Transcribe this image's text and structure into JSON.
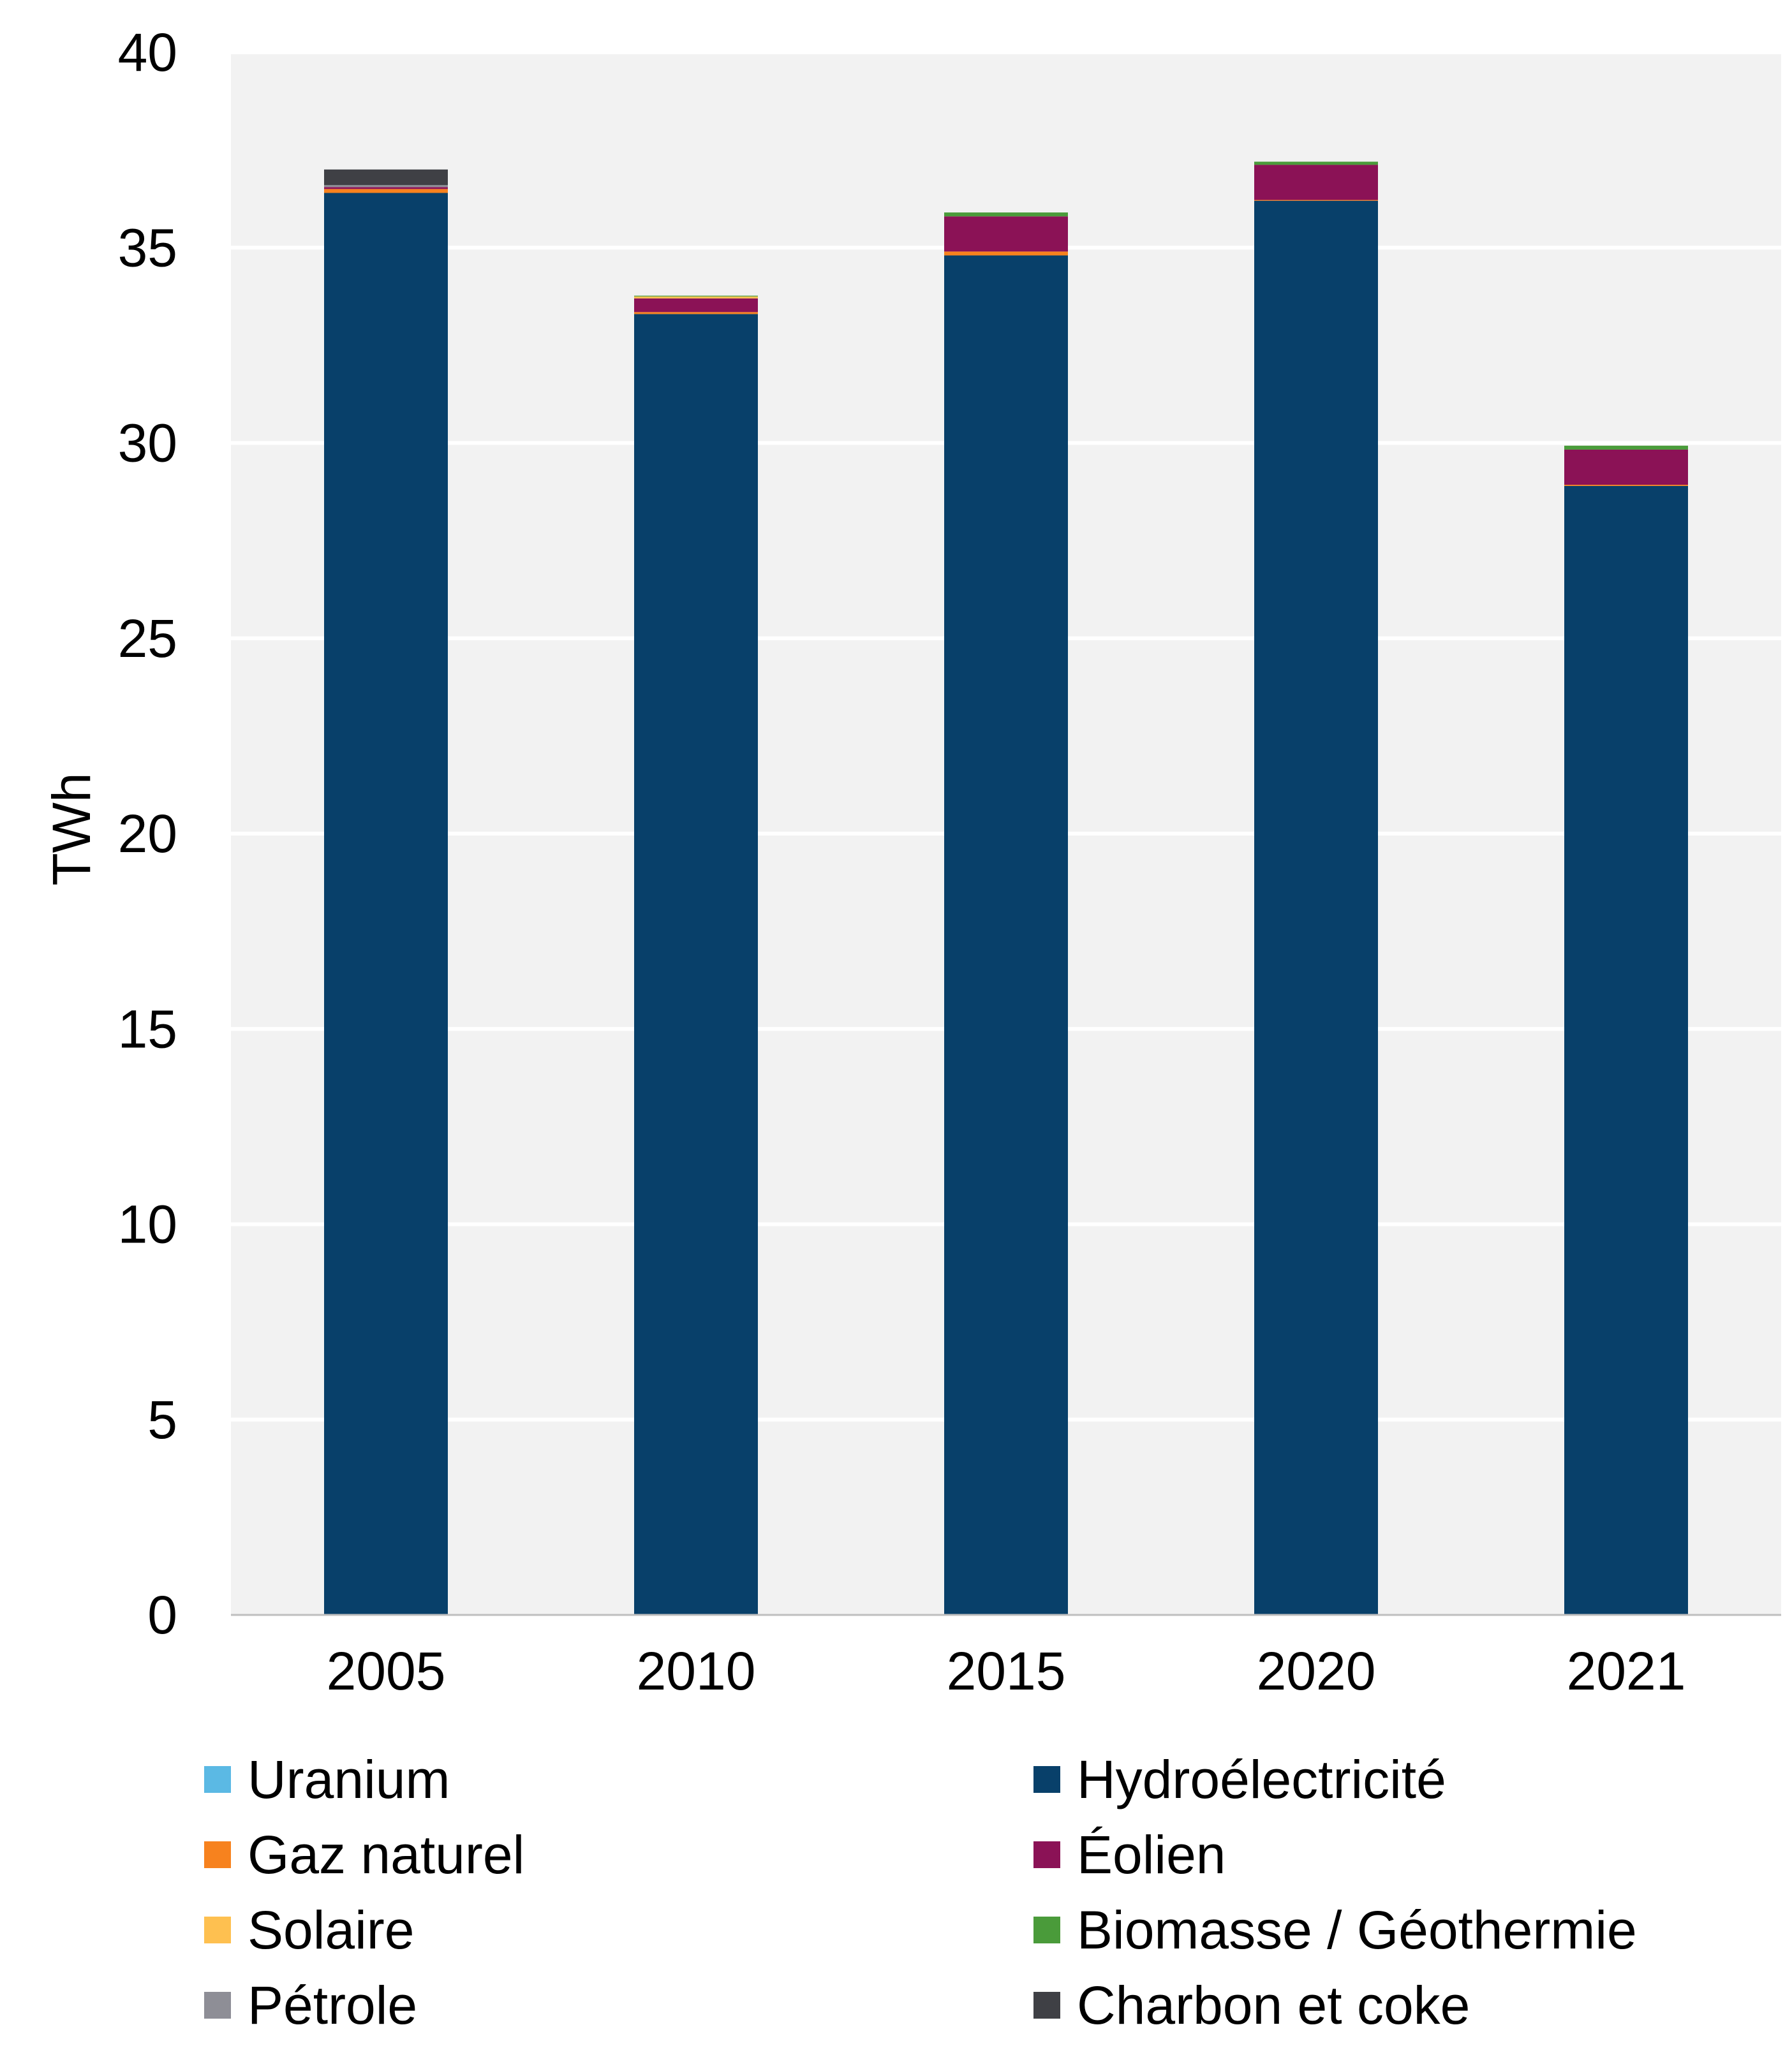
{
  "chart_data": {
    "type": "bar",
    "stacked": true,
    "categories": [
      "2005",
      "2010",
      "2015",
      "2020",
      "2021"
    ],
    "ylabel": "TWh",
    "xlabel": "",
    "ylim": [
      0,
      40
    ],
    "yticks": [
      "0",
      "5",
      "10",
      "15",
      "20",
      "25",
      "30",
      "35",
      "40"
    ],
    "grid": true,
    "legend_position": "bottom",
    "series": [
      {
        "name": "Uranium",
        "color": "#5BB9E4",
        "values": [
          0,
          0,
          0,
          0,
          0
        ]
      },
      {
        "name": "Hydroélectricité",
        "color": "#08406A",
        "values": [
          36.4,
          33.3,
          34.8,
          36.2,
          28.9
        ]
      },
      {
        "name": "Gaz naturel",
        "color": "#F7821E",
        "values": [
          0.1,
          0.05,
          0.1,
          0.02,
          0.03
        ]
      },
      {
        "name": "Éolien",
        "color": "#8B1256",
        "values": [
          0.05,
          0.35,
          0.9,
          0.9,
          0.9
        ]
      },
      {
        "name": "Solaire",
        "color": "#FEC050",
        "values": [
          0,
          0.05,
          0,
          0,
          0
        ]
      },
      {
        "name": "Biomasse / Géothermie",
        "color": "#4A9B3A",
        "values": [
          0,
          0.02,
          0.1,
          0.08,
          0.1
        ]
      },
      {
        "name": "Pétrole",
        "color": "#8E8E96",
        "values": [
          0.05,
          0,
          0,
          0,
          0
        ]
      },
      {
        "name": "Charbon et coke",
        "color": "#3F4045",
        "values": [
          0.4,
          0,
          0,
          0,
          0
        ]
      }
    ]
  },
  "legend_order": [
    "Uranium",
    "Gaz naturel",
    "Solaire",
    "Pétrole",
    "Hydroélectricité",
    "Éolien",
    "Biomasse / Géothermie",
    "Charbon et coke"
  ],
  "colors": {
    "plot_background": "#F2F2F2",
    "gridline": "#FFFFFF",
    "axis_line": "#BFBFBF"
  }
}
